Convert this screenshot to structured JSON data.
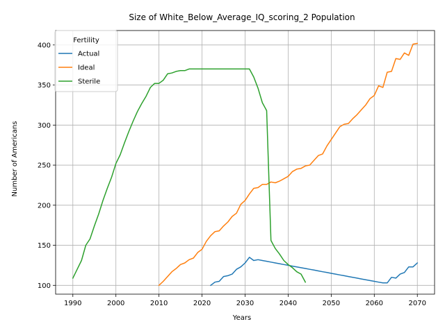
{
  "chart_data": {
    "type": "line",
    "title": "Size of White_Below_Average_IQ_scoring_2 Population",
    "xlabel": "Years",
    "ylabel": "Number of Americans",
    "xlim": [
      1986,
      2074
    ],
    "ylim": [
      89,
      418
    ],
    "xticks": [
      1990,
      2000,
      2010,
      2020,
      2030,
      2040,
      2050,
      2060,
      2070
    ],
    "yticks": [
      100,
      150,
      200,
      250,
      300,
      350,
      400
    ],
    "grid": true,
    "legend": {
      "title": "Fertility",
      "placement": "top-left"
    },
    "series": [
      {
        "name": "Actual",
        "color": "#1f77b4",
        "x": [
          2022,
          2023,
          2024,
          2025,
          2026,
          2027,
          2028,
          2029,
          2030,
          2031,
          2032,
          2033,
          2034,
          2035,
          2036,
          2037,
          2038,
          2039,
          2040,
          2041,
          2042,
          2043,
          2044,
          2045,
          2046,
          2047,
          2048,
          2049,
          2050,
          2051,
          2052,
          2053,
          2054,
          2055,
          2056,
          2057,
          2058,
          2059,
          2060,
          2061,
          2062,
          2063,
          2064,
          2065,
          2066,
          2067,
          2068,
          2069,
          2070
        ],
        "y": [
          100,
          104,
          105,
          111,
          112,
          114,
          120,
          123,
          128,
          135,
          131,
          132,
          131,
          130,
          129,
          128,
          127,
          126,
          125,
          124,
          123,
          122,
          121,
          120,
          119,
          118,
          117,
          116,
          115,
          114,
          113,
          112,
          111,
          110,
          109,
          108,
          107,
          106,
          105,
          104,
          103,
          103,
          110,
          109,
          114,
          116,
          123,
          123,
          128
        ]
      },
      {
        "name": "Ideal",
        "color": "#ff7f0e",
        "x": [
          2010,
          2011,
          2012,
          2013,
          2014,
          2015,
          2016,
          2017,
          2018,
          2019,
          2020,
          2021,
          2022,
          2023,
          2024,
          2025,
          2026,
          2027,
          2028,
          2029,
          2030,
          2031,
          2032,
          2033,
          2034,
          2035,
          2036,
          2037,
          2038,
          2039,
          2040,
          2041,
          2042,
          2043,
          2044,
          2045,
          2046,
          2047,
          2048,
          2049,
          2050,
          2051,
          2052,
          2053,
          2054,
          2055,
          2056,
          2057,
          2058,
          2059,
          2060,
          2061,
          2062,
          2063,
          2064,
          2065,
          2066,
          2067,
          2068,
          2069,
          2070
        ],
        "y": [
          100,
          105,
          111,
          117,
          121,
          126,
          128,
          132,
          134,
          141,
          145,
          155,
          162,
          167,
          168,
          174,
          179,
          186,
          190,
          201,
          206,
          214,
          221,
          222,
          226,
          226,
          229,
          228,
          230,
          233,
          236,
          242,
          245,
          246,
          249,
          250,
          256,
          262,
          264,
          274,
          282,
          290,
          298,
          301,
          302,
          308,
          313,
          319,
          325,
          333,
          337,
          349,
          347,
          366,
          367,
          383,
          382,
          390,
          387,
          401,
          402
        ]
      },
      {
        "name": "Sterile",
        "color": "#2ca02c",
        "x": [
          1990,
          1991,
          1992,
          1993,
          1994,
          1995,
          1996,
          1997,
          1998,
          1999,
          2000,
          2001,
          2002,
          2003,
          2004,
          2005,
          2006,
          2007,
          2008,
          2009,
          2010,
          2011,
          2012,
          2013,
          2014,
          2015,
          2016,
          2017,
          2018,
          2019,
          2020,
          2021,
          2022,
          2023,
          2024,
          2025,
          2026,
          2027,
          2028,
          2029,
          2030,
          2031,
          2032,
          2033,
          2034,
          2035,
          2036,
          2037,
          2038,
          2039,
          2040,
          2041,
          2042,
          2043,
          2044
        ],
        "y": [
          109,
          120,
          131,
          150,
          158,
          174,
          189,
          206,
          221,
          235,
          252,
          263,
          278,
          292,
          305,
          317,
          327,
          336,
          347,
          352,
          352,
          356,
          364,
          365,
          367,
          368,
          368,
          370,
          370,
          370,
          370,
          370,
          370,
          370,
          370,
          370,
          370,
          370,
          370,
          370,
          370,
          370,
          360,
          346,
          328,
          318,
          156,
          146,
          139,
          131,
          126,
          122,
          117,
          114,
          104
        ]
      }
    ]
  }
}
